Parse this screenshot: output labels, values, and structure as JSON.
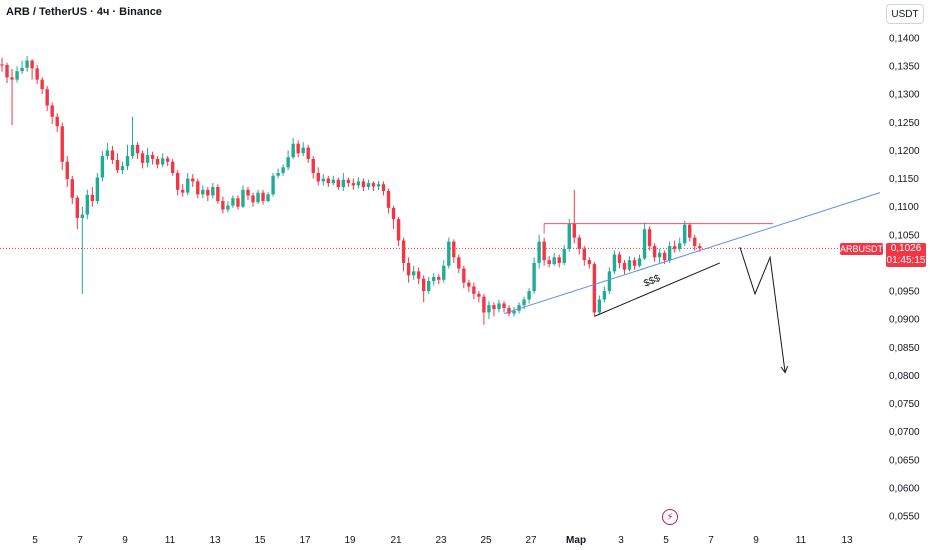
{
  "header": {
    "title": "ARB / TetherUS · 4ч · Binance"
  },
  "toolbar": {
    "currency": "USDT"
  },
  "price_marker": {
    "symbol": "ARBUSDT",
    "price": "0,1026",
    "countdown": "01:45:15"
  },
  "events": {
    "flash_icon": "lightning-icon"
  },
  "colors": {
    "up": "#22ab94",
    "down": "#f23645",
    "trendline": "#5b8ee6",
    "resistance": "#f7525f",
    "annotation": "#131722"
  },
  "chart_data": {
    "type": "candlestick",
    "ylim": [
      0.052,
      0.1435
    ],
    "y_ticks": [
      "0,1400",
      "0,1350",
      "0,1300",
      "0,1250",
      "0,1200",
      "0,1150",
      "0,1100",
      "0,1050",
      "0,0950",
      "0,0900",
      "0,0850",
      "0,0800",
      "0,0750",
      "0,0700",
      "0,0650",
      "0,0600",
      "0,0550"
    ],
    "y_tick_values": [
      0.14,
      0.135,
      0.13,
      0.125,
      0.12,
      0.115,
      0.11,
      0.105,
      0.095,
      0.09,
      0.085,
      0.08,
      0.075,
      0.07,
      0.065,
      0.06,
      0.055
    ],
    "x_ticks": [
      "5",
      "7",
      "9",
      "11",
      "13",
      "15",
      "17",
      "19",
      "21",
      "23",
      "25",
      "27",
      "Мар",
      "3",
      "5",
      "7",
      "9",
      "11",
      "13"
    ],
    "current_price": 0.1026,
    "annotations": {
      "liquidity_label": "$$$"
    },
    "candles": [
      [
        0.1353,
        0.1352,
        0.1365,
        0.134
      ],
      [
        0.1352,
        0.133,
        0.1356,
        0.132
      ],
      [
        0.133,
        0.1326,
        0.1345,
        0.1245
      ],
      [
        0.1326,
        0.1341,
        0.135,
        0.1321
      ],
      [
        0.1341,
        0.1347,
        0.136,
        0.1336
      ],
      [
        0.1347,
        0.136,
        0.1368,
        0.134
      ],
      [
        0.136,
        0.1346,
        0.1362,
        0.1326
      ],
      [
        0.1346,
        0.1326,
        0.1352,
        0.1318
      ],
      [
        0.1326,
        0.1309,
        0.133,
        0.13
      ],
      [
        0.1309,
        0.128,
        0.1315,
        0.127
      ],
      [
        0.128,
        0.126,
        0.1285,
        0.1247
      ],
      [
        0.126,
        0.1243,
        0.1266,
        0.1233
      ],
      [
        0.1243,
        0.118,
        0.125,
        0.1165
      ],
      [
        0.118,
        0.1149,
        0.119,
        0.1135
      ],
      [
        0.1149,
        0.1116,
        0.1155,
        0.1105
      ],
      [
        0.1116,
        0.108,
        0.112,
        0.106
      ],
      [
        0.108,
        0.1086,
        0.11,
        0.0945
      ],
      [
        0.1086,
        0.1121,
        0.113,
        0.1078
      ],
      [
        0.1121,
        0.111,
        0.1135,
        0.11
      ],
      [
        0.111,
        0.1152,
        0.116,
        0.1105
      ],
      [
        0.1152,
        0.119,
        0.1199,
        0.1145
      ],
      [
        0.119,
        0.12,
        0.1213,
        0.1184
      ],
      [
        0.12,
        0.1183,
        0.1208,
        0.1176
      ],
      [
        0.1183,
        0.1165,
        0.1195,
        0.116
      ],
      [
        0.1165,
        0.1172,
        0.118,
        0.1158
      ],
      [
        0.1172,
        0.119,
        0.121,
        0.1165
      ],
      [
        0.119,
        0.121,
        0.126,
        0.1185
      ],
      [
        0.121,
        0.1195,
        0.1215,
        0.1185
      ],
      [
        0.1195,
        0.1178,
        0.12,
        0.1168
      ],
      [
        0.1178,
        0.1192,
        0.1205,
        0.117
      ],
      [
        0.1192,
        0.1185,
        0.1198,
        0.1175
      ],
      [
        0.1185,
        0.1175,
        0.119,
        0.1168
      ],
      [
        0.1175,
        0.1186,
        0.1195,
        0.117
      ],
      [
        0.1186,
        0.118,
        0.119,
        0.1172
      ],
      [
        0.118,
        0.116,
        0.1185,
        0.1155
      ],
      [
        0.116,
        0.113,
        0.1165,
        0.112
      ],
      [
        0.113,
        0.1125,
        0.114,
        0.1118
      ],
      [
        0.1125,
        0.115,
        0.116,
        0.112
      ],
      [
        0.115,
        0.1145,
        0.1158,
        0.1135
      ],
      [
        0.1145,
        0.1122,
        0.115,
        0.1115
      ],
      [
        0.1122,
        0.113,
        0.1138,
        0.1115
      ],
      [
        0.113,
        0.112,
        0.1135,
        0.111
      ],
      [
        0.112,
        0.1135,
        0.1142,
        0.1115
      ],
      [
        0.1135,
        0.111,
        0.114,
        0.1105
      ],
      [
        0.111,
        0.1095,
        0.1118,
        0.1088
      ],
      [
        0.1095,
        0.1102,
        0.111,
        0.109
      ],
      [
        0.1102,
        0.1115,
        0.112,
        0.1098
      ],
      [
        0.1115,
        0.11,
        0.112,
        0.1095
      ],
      [
        0.11,
        0.113,
        0.1138,
        0.1098
      ],
      [
        0.113,
        0.112,
        0.1135,
        0.1112
      ],
      [
        0.112,
        0.1108,
        0.1125,
        0.11
      ],
      [
        0.1108,
        0.1125,
        0.113,
        0.1105
      ],
      [
        0.1125,
        0.111,
        0.113,
        0.1104
      ],
      [
        0.111,
        0.1122,
        0.1126,
        0.1108
      ],
      [
        0.1122,
        0.1155,
        0.116,
        0.1118
      ],
      [
        0.1155,
        0.116,
        0.1168,
        0.115
      ],
      [
        0.116,
        0.117,
        0.1175,
        0.1155
      ],
      [
        0.117,
        0.1188,
        0.12,
        0.1165
      ],
      [
        0.1188,
        0.1212,
        0.1222,
        0.1185
      ],
      [
        0.1212,
        0.1195,
        0.1218,
        0.1188
      ],
      [
        0.1195,
        0.1205,
        0.1215,
        0.119
      ],
      [
        0.1205,
        0.1185,
        0.121,
        0.1178
      ],
      [
        0.1185,
        0.116,
        0.119,
        0.115
      ],
      [
        0.116,
        0.1145,
        0.117,
        0.1138
      ],
      [
        0.1145,
        0.115,
        0.1158,
        0.1138
      ],
      [
        0.115,
        0.1142,
        0.1155,
        0.1135
      ],
      [
        0.1142,
        0.1148,
        0.1155,
        0.1138
      ],
      [
        0.1148,
        0.1135,
        0.1152,
        0.113
      ],
      [
        0.1135,
        0.1148,
        0.116,
        0.1128
      ],
      [
        0.1148,
        0.1142,
        0.1152,
        0.1135
      ],
      [
        0.1142,
        0.1138,
        0.115,
        0.113
      ],
      [
        0.1138,
        0.1145,
        0.1152,
        0.1132
      ],
      [
        0.1145,
        0.1135,
        0.115,
        0.1128
      ],
      [
        0.1135,
        0.1142,
        0.1148,
        0.113
      ],
      [
        0.1142,
        0.1136,
        0.1145,
        0.1128
      ],
      [
        0.1136,
        0.114,
        0.1146,
        0.113
      ],
      [
        0.114,
        0.1128,
        0.1145,
        0.112
      ],
      [
        0.1128,
        0.1098,
        0.1132,
        0.1088
      ],
      [
        0.1098,
        0.1078,
        0.1102,
        0.106
      ],
      [
        0.1078,
        0.104,
        0.1082,
        0.103
      ],
      [
        0.104,
        0.1,
        0.1045,
        0.0985
      ],
      [
        0.1,
        0.0978,
        0.101,
        0.0965
      ],
      [
        0.0978,
        0.0985,
        0.0995,
        0.097
      ],
      [
        0.0985,
        0.0972,
        0.0992,
        0.0962
      ],
      [
        0.0972,
        0.095,
        0.0978,
        0.093
      ],
      [
        0.095,
        0.0968,
        0.0975,
        0.0945
      ],
      [
        0.0968,
        0.0975,
        0.0982,
        0.096
      ],
      [
        0.0975,
        0.097,
        0.098,
        0.0962
      ],
      [
        0.097,
        0.0995,
        0.1005,
        0.0965
      ],
      [
        0.0995,
        0.1038,
        0.1045,
        0.099
      ],
      [
        0.1038,
        0.101,
        0.1042,
        0.1
      ],
      [
        0.101,
        0.099,
        0.1015,
        0.0982
      ],
      [
        0.099,
        0.0965,
        0.0995,
        0.0955
      ],
      [
        0.0965,
        0.0958,
        0.097,
        0.0948
      ],
      [
        0.0958,
        0.0945,
        0.0965,
        0.0935
      ],
      [
        0.0945,
        0.094,
        0.095,
        0.093
      ],
      [
        0.094,
        0.0912,
        0.0945,
        0.089
      ],
      [
        0.0912,
        0.0925,
        0.0932,
        0.09
      ],
      [
        0.0925,
        0.0918,
        0.093,
        0.0905
      ],
      [
        0.0918,
        0.0928,
        0.0935,
        0.0912
      ],
      [
        0.0928,
        0.092,
        0.0932,
        0.0912
      ],
      [
        0.092,
        0.091,
        0.0925,
        0.0905
      ],
      [
        0.091,
        0.0915,
        0.0922,
        0.0905
      ],
      [
        0.0915,
        0.0925,
        0.093,
        0.091
      ],
      [
        0.0925,
        0.0935,
        0.094,
        0.0918
      ],
      [
        0.0935,
        0.095,
        0.0955,
        0.0928
      ],
      [
        0.095,
        0.1,
        0.101,
        0.0945
      ],
      [
        0.1,
        0.1038,
        0.105,
        0.099
      ],
      [
        0.1038,
        0.1005,
        0.1045,
        0.0995
      ],
      [
        0.1005,
        0.0998,
        0.1012,
        0.0992
      ],
      [
        0.0998,
        0.101,
        0.1018,
        0.0995
      ],
      [
        0.101,
        0.1,
        0.1015,
        0.0992
      ],
      [
        0.1,
        0.1025,
        0.1032,
        0.0996
      ],
      [
        0.1025,
        0.107,
        0.1078,
        0.102
      ],
      [
        0.107,
        0.1045,
        0.113,
        0.1035
      ],
      [
        0.1045,
        0.1025,
        0.105,
        0.1015
      ],
      [
        0.1025,
        0.1005,
        0.103,
        0.0995
      ],
      [
        0.1005,
        0.0998,
        0.101,
        0.099
      ],
      [
        0.0998,
        0.0912,
        0.1002,
        0.0905
      ],
      [
        0.0912,
        0.0935,
        0.0942,
        0.0908
      ],
      [
        0.0935,
        0.095,
        0.0958,
        0.093
      ],
      [
        0.095,
        0.0985,
        0.0992,
        0.0945
      ],
      [
        0.0985,
        0.1015,
        0.1022,
        0.098
      ],
      [
        0.1015,
        0.1,
        0.102,
        0.099
      ],
      [
        0.1,
        0.0988,
        0.1005,
        0.098
      ],
      [
        0.0988,
        0.1005,
        0.1012,
        0.0985
      ],
      [
        0.1005,
        0.0995,
        0.101,
        0.0988
      ],
      [
        0.0995,
        0.1008,
        0.1015,
        0.0992
      ],
      [
        0.1008,
        0.106,
        0.1072,
        0.1005
      ],
      [
        0.106,
        0.103,
        0.1065,
        0.1022
      ],
      [
        0.103,
        0.101,
        0.1035,
        0.1002
      ],
      [
        0.101,
        0.1018,
        0.1025,
        0.1
      ],
      [
        0.1018,
        0.1005,
        0.1022,
        0.0998
      ],
      [
        0.1005,
        0.103,
        0.1038,
        0.1
      ],
      [
        0.103,
        0.1025,
        0.104,
        0.1018
      ],
      [
        0.1025,
        0.1035,
        0.1045,
        0.102
      ],
      [
        0.1035,
        0.1068,
        0.1075,
        0.103
      ],
      [
        0.1068,
        0.1045,
        0.1072,
        0.1038
      ],
      [
        0.1045,
        0.103,
        0.105,
        0.1022
      ],
      [
        0.103,
        0.1026,
        0.1035,
        0.102
      ]
    ],
    "resistance_level": {
      "price": 0.107,
      "from_index": 108,
      "to_x": 7.8
    },
    "trendline": {
      "from_price": 0.091,
      "from_index": 100,
      "to_price": 0.1125,
      "to_x_end": true
    },
    "liquidity_line": {
      "from": [
        0.0905,
        118
      ],
      "to": [
        0.1,
        143
      ]
    },
    "projection_path": [
      [
        0.1028,
        147
      ],
      [
        0.0945,
        150
      ],
      [
        0.101,
        153
      ],
      [
        0.0805,
        156
      ]
    ]
  }
}
